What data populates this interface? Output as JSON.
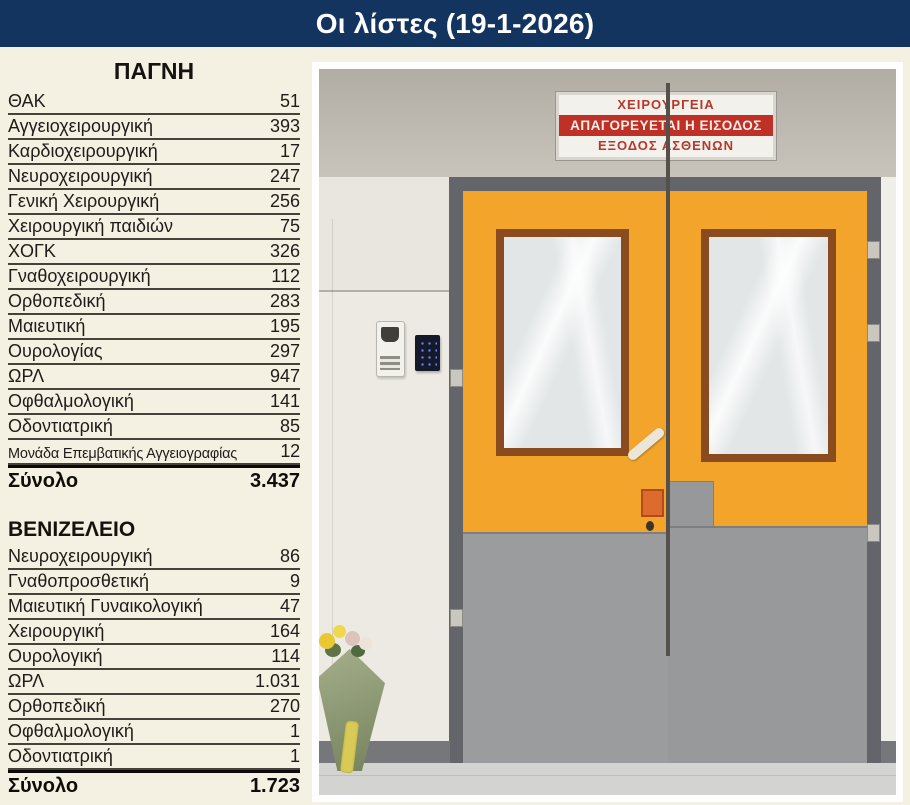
{
  "page": {
    "title": "Οι λίστες (19-1-2026)"
  },
  "colors": {
    "header_bg": "#12345f",
    "page_bg": "#f4f0e2",
    "sign_red": "#bf3127",
    "door_orange": "#f2a52a",
    "door_gray": "#9b9c9e",
    "table_text": "#1e1d1a"
  },
  "tables": [
    {
      "title": "ΠΑΓΝΗ",
      "rows": [
        {
          "label": "ΘΑΚ",
          "value": "51"
        },
        {
          "label": "Αγγειοχειρουργική",
          "value": "393"
        },
        {
          "label": "Καρδιοχειρουργική",
          "value": "17"
        },
        {
          "label": "Νευροχειρουργική",
          "value": "247"
        },
        {
          "label": "Γενική Χειρουργική",
          "value": "256"
        },
        {
          "label": "Χειρουργική παιδιών",
          "value": "75"
        },
        {
          "label": "ΧΟΓΚ",
          "value": "326"
        },
        {
          "label": "Γναθοχειρουργική",
          "value": "112"
        },
        {
          "label": "Ορθοπεδική",
          "value": "283"
        },
        {
          "label": "Μαιευτική",
          "value": "195"
        },
        {
          "label": "Ουρολογίας",
          "value": "297"
        },
        {
          "label": "ΩΡΛ",
          "value": "947"
        },
        {
          "label": "Οφθαλμολογική",
          "value": "141"
        },
        {
          "label": "Οδοντιατρική",
          "value": "85"
        },
        {
          "label": "Μονάδα Επεμβατικής Αγγειογραφίας",
          "value": "12"
        }
      ],
      "total_label": "Σύνολο",
      "total_value": "3.437"
    },
    {
      "title": "ΒΕΝΙΖΕΛΕΙΟ",
      "rows": [
        {
          "label": "Νευροχειρουργική",
          "value": "86"
        },
        {
          "label": "Γναθοπροσθετική",
          "value": "9"
        },
        {
          "label": "Μαιευτική Γυναικολογική",
          "value": "47"
        },
        {
          "label": "Χειρουργική",
          "value": "164"
        },
        {
          "label": "Ουρολογική",
          "value": "114"
        },
        {
          "label": "ΩΡΛ",
          "value": "1.031"
        },
        {
          "label": "Ορθοπεδική",
          "value": "270"
        },
        {
          "label": "Οφθαλμολογική",
          "value": "1"
        },
        {
          "label": "Οδοντιατρική",
          "value": "1"
        }
      ],
      "total_label": "Σύνολο",
      "total_value": "1.723"
    }
  ],
  "photo": {
    "sign_lines": [
      "ΧΕΙΡΟΥΡΓΕΙΑ",
      "ΑΠΑΓΟΡΕΥΕΤΑΙ Η ΕΙΣΟΔΟΣ",
      "ΕΞΟΔΟΣ ΑΣΘΕΝΩΝ"
    ]
  }
}
